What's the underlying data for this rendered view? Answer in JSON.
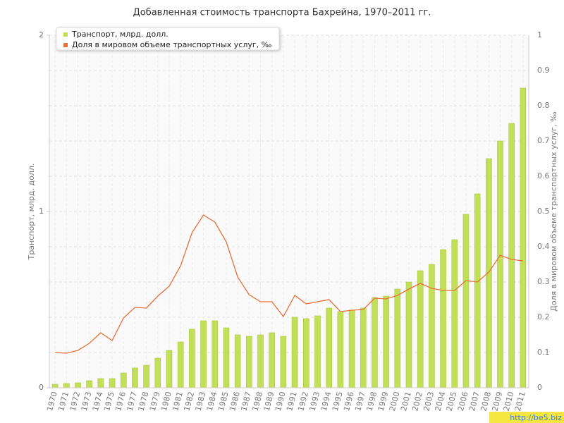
{
  "chart_data": {
    "type": "bar",
    "title": "Добавленная стоимость транспорта Бахрейна, 1970–2011 гг.",
    "ylabel": "Транспорт, млрд. долл.",
    "y2label": "Доля в мировом объеме транспортных услуг, ‰",
    "categories": [
      "1970",
      "1971",
      "1972",
      "1973",
      "1974",
      "1975",
      "1976",
      "1977",
      "1978",
      "1979",
      "1980",
      "1981",
      "1982",
      "1983",
      "1984",
      "1985",
      "1986",
      "1987",
      "1988",
      "1989",
      "1990",
      "1991",
      "1992",
      "1993",
      "1994",
      "1995",
      "1996",
      "1997",
      "1998",
      "1999",
      "2000",
      "2001",
      "2002",
      "2003",
      "2004",
      "2005",
      "2006",
      "2007",
      "2008",
      "2009",
      "2010",
      "2011"
    ],
    "series": [
      {
        "name": "Транспорт, млрд. долл.",
        "type": "bar",
        "axis": "y",
        "color": "#c3df5a",
        "values": [
          0.02,
          0.024,
          0.028,
          0.04,
          0.052,
          0.052,
          0.084,
          0.112,
          0.128,
          0.168,
          0.212,
          0.26,
          0.332,
          0.38,
          0.38,
          0.34,
          0.3,
          0.292,
          0.3,
          0.312,
          0.292,
          0.4,
          0.392,
          0.408,
          0.452,
          0.432,
          0.44,
          0.452,
          0.512,
          0.52,
          0.56,
          0.6,
          0.664,
          0.7,
          0.784,
          0.84,
          0.984,
          1.1,
          1.3,
          1.4,
          1.5,
          1.7
        ]
      },
      {
        "name": "Доля в мировом объеме транспортных услуг, ‰",
        "type": "line",
        "axis": "y2",
        "color": "#e8703a",
        "values": [
          0.1,
          0.098,
          0.106,
          0.126,
          0.156,
          0.134,
          0.198,
          0.228,
          0.226,
          0.26,
          0.288,
          0.346,
          0.44,
          0.49,
          0.47,
          0.414,
          0.314,
          0.264,
          0.244,
          0.244,
          0.202,
          0.262,
          0.238,
          0.244,
          0.25,
          0.216,
          0.22,
          0.222,
          0.254,
          0.252,
          0.262,
          0.28,
          0.296,
          0.282,
          0.276,
          0.276,
          0.304,
          0.3,
          0.328,
          0.376,
          0.364,
          0.36
        ]
      }
    ],
    "ylim": [
      0,
      2
    ],
    "yticks": [
      0,
      1,
      2
    ],
    "y2lim": [
      0,
      1
    ],
    "y2ticks": [
      0,
      0.1,
      0.2,
      0.3,
      0.4,
      0.5,
      0.6,
      0.7,
      0.8,
      0.9,
      1
    ],
    "grid": true,
    "legend": "top-left",
    "watermark": "http://be5.biz"
  }
}
